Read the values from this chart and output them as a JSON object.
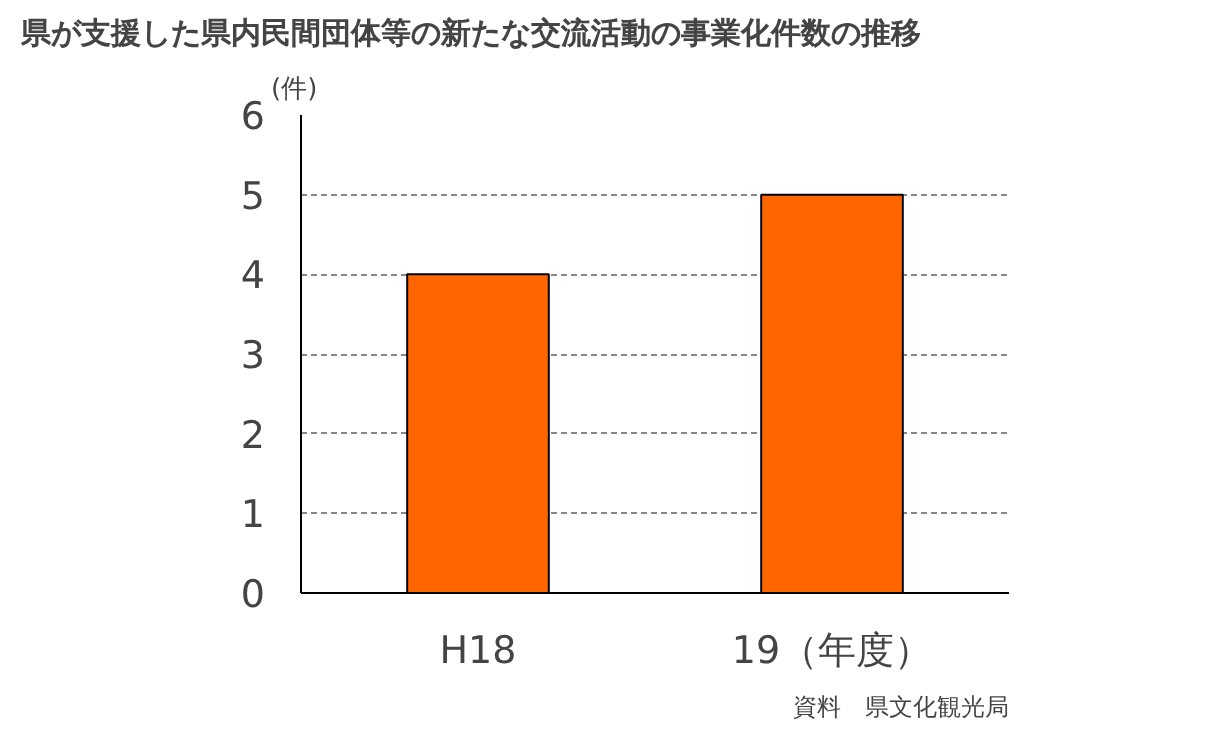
{
  "chart_data": {
    "type": "bar",
    "title": "県が支援した県内民間団体等の新たな交流活動の事業化件数の推移",
    "ylabel": "(件)",
    "categories": [
      "H18",
      "19（年度）"
    ],
    "values": [
      4,
      5
    ],
    "color": "#ff6600",
    "ylim": [
      0,
      6
    ],
    "yticks": [
      0,
      1,
      2,
      3,
      4,
      5,
      6
    ],
    "grid": "y",
    "annotations": [
      "資料　県文化観光局"
    ]
  }
}
